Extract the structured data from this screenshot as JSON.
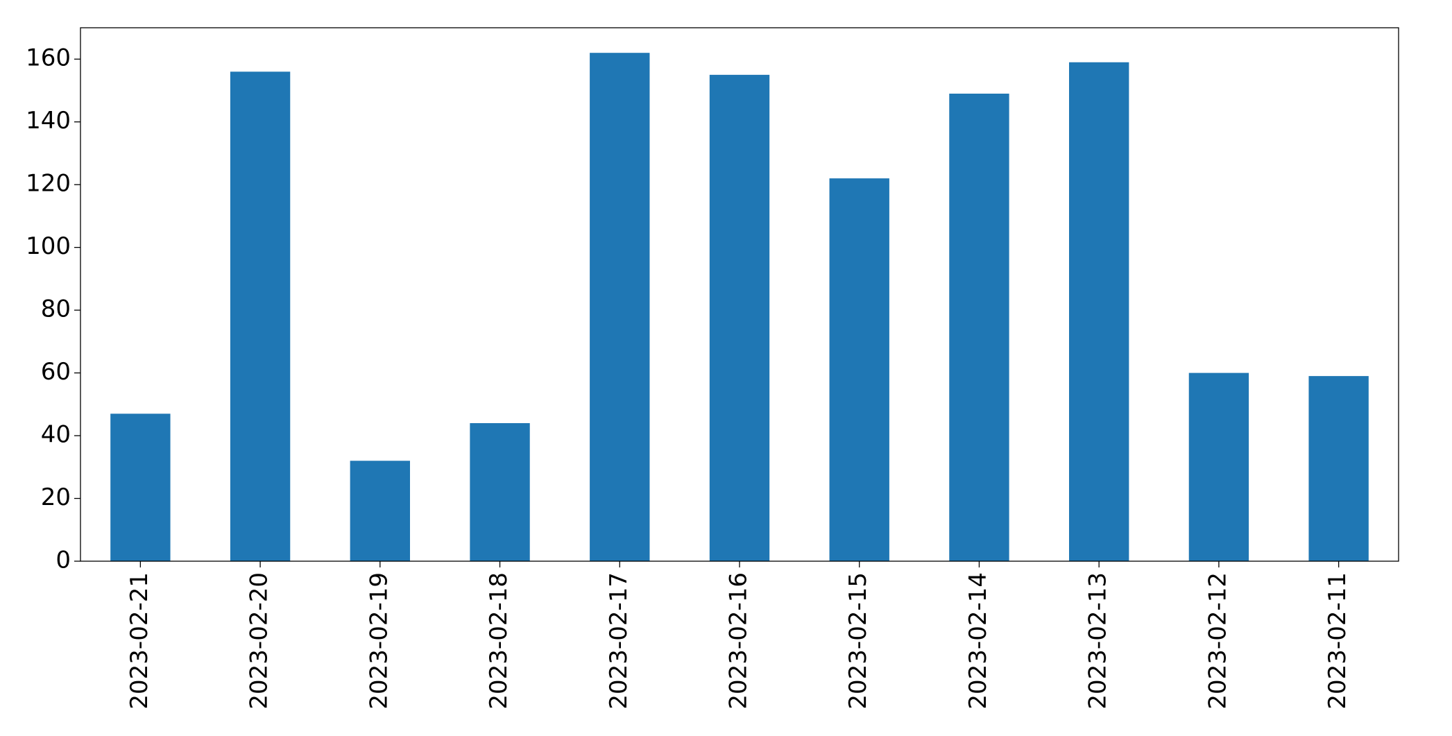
{
  "chart_data": {
    "type": "bar",
    "categories": [
      "2023-02-21",
      "2023-02-20",
      "2023-02-19",
      "2023-02-18",
      "2023-02-17",
      "2023-02-16",
      "2023-02-15",
      "2023-02-14",
      "2023-02-13",
      "2023-02-12",
      "2023-02-11"
    ],
    "values": [
      47,
      156,
      32,
      44,
      162,
      155,
      122,
      149,
      159,
      60,
      59
    ],
    "color": "#1f77b4",
    "ylim": [
      0,
      170
    ],
    "yticks": [
      0,
      20,
      40,
      60,
      80,
      100,
      120,
      140,
      160
    ],
    "grid": false
  }
}
